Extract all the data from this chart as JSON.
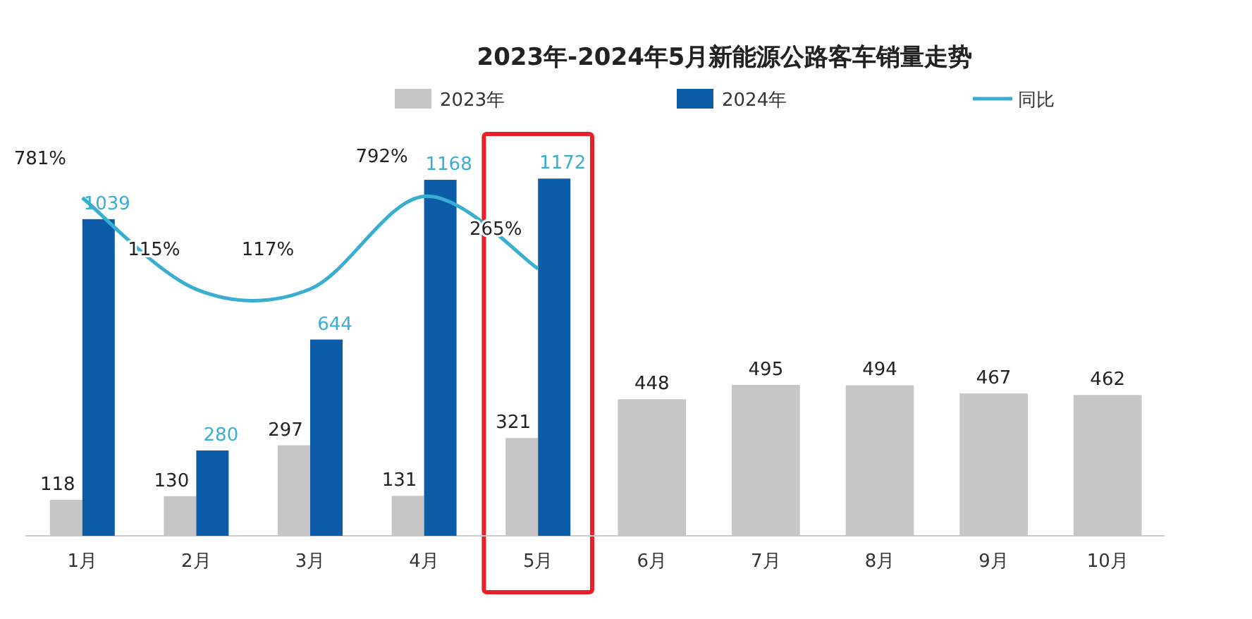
{
  "chart_data": {
    "type": "bar",
    "title": "2023年-2024年5月新能源公路客车销量走势",
    "categories": [
      "1月",
      "2月",
      "3月",
      "4月",
      "5月",
      "6月",
      "7月",
      "8月",
      "9月",
      "10月"
    ],
    "series": [
      {
        "name": "2023年",
        "color": "#c6c6c6",
        "values": [
          118,
          130,
          297,
          131,
          321,
          448,
          495,
          494,
          467,
          462
        ]
      },
      {
        "name": "2024年",
        "color": "#0c5ca8",
        "values": [
          1039,
          280,
          644,
          1168,
          1172,
          null,
          null,
          null,
          null,
          null
        ]
      },
      {
        "name": "同比",
        "type": "line",
        "axis": "y2",
        "color": "#3aaed0",
        "values": [
          781,
          115,
          117,
          792,
          265,
          null,
          null,
          null,
          null,
          null
        ],
        "value_labels": [
          "781%",
          "115%",
          "117%",
          "792%",
          "265%",
          null,
          null,
          null,
          null,
          null
        ]
      }
    ],
    "data_labels": true,
    "legend": "top",
    "tick_labels": "x"
  }
}
